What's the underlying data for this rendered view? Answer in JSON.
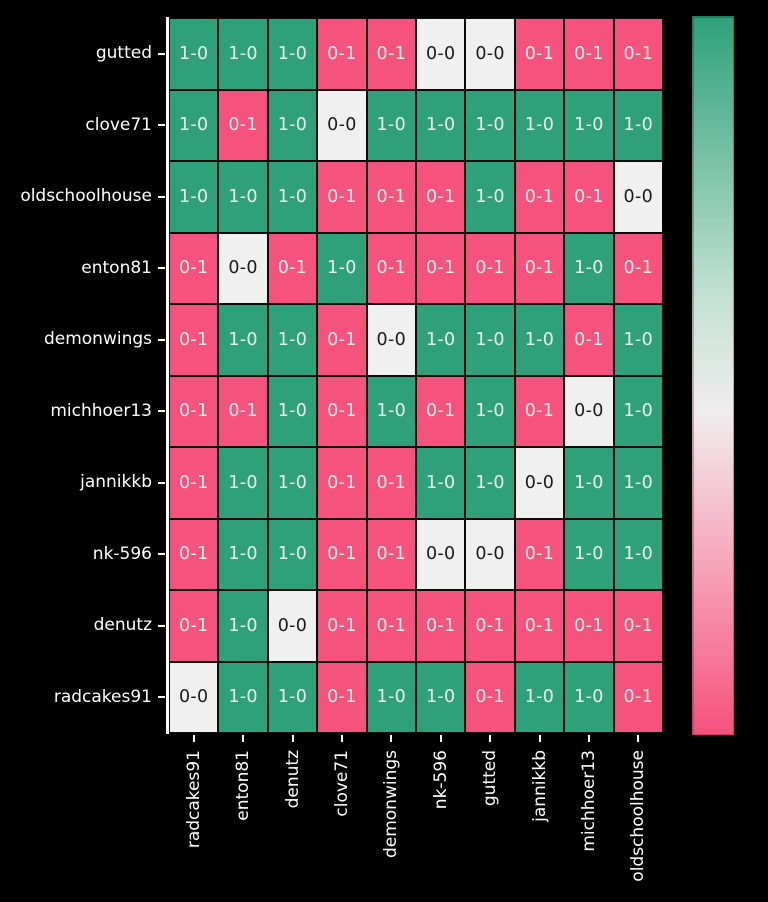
{
  "chart_data": {
    "type": "heatmap",
    "title": "",
    "description": "Head-to-head match results matrix (win 1-0 green, loss 0-1 pink, draw/self 0-0 white)",
    "row_labels": [
      "gutted",
      "clove71",
      "oldschoolhouse",
      "enton81",
      "demonwings",
      "michhoer13",
      "jannikkb",
      "nk-596",
      "denutz",
      "radcakes91"
    ],
    "col_labels": [
      "radcakes91",
      "enton81",
      "denutz",
      "clove71",
      "demonwings",
      "nk-596",
      "gutted",
      "jannikkb",
      "michhoer13",
      "oldschoolhouse"
    ],
    "values": [
      [
        "1-0",
        "1-0",
        "1-0",
        "0-1",
        "0-1",
        "0-0",
        "0-0",
        "0-1",
        "0-1",
        "0-1"
      ],
      [
        "1-0",
        "0-1",
        "1-0",
        "0-0",
        "1-0",
        "1-0",
        "1-0",
        "1-0",
        "1-0",
        "1-0"
      ],
      [
        "1-0",
        "1-0",
        "1-0",
        "0-1",
        "0-1",
        "0-1",
        "1-0",
        "0-1",
        "0-1",
        "0-0"
      ],
      [
        "0-1",
        "0-0",
        "0-1",
        "1-0",
        "0-1",
        "0-1",
        "0-1",
        "0-1",
        "1-0",
        "0-1"
      ],
      [
        "0-1",
        "1-0",
        "1-0",
        "0-1",
        "0-0",
        "1-0",
        "1-0",
        "1-0",
        "0-1",
        "1-0"
      ],
      [
        "0-1",
        "0-1",
        "1-0",
        "0-1",
        "1-0",
        "0-1",
        "1-0",
        "0-1",
        "0-0",
        "1-0"
      ],
      [
        "0-1",
        "1-0",
        "1-0",
        "0-1",
        "0-1",
        "1-0",
        "1-0",
        "0-0",
        "1-0",
        "1-0"
      ],
      [
        "0-1",
        "1-0",
        "1-0",
        "0-1",
        "0-1",
        "0-0",
        "0-0",
        "0-1",
        "1-0",
        "1-0"
      ],
      [
        "0-1",
        "1-0",
        "0-0",
        "0-1",
        "0-1",
        "0-1",
        "0-1",
        "0-1",
        "0-1",
        "0-1"
      ],
      [
        "0-0",
        "1-0",
        "1-0",
        "0-1",
        "1-0",
        "1-0",
        "0-1",
        "1-0",
        "1-0",
        "0-1"
      ]
    ],
    "value_color_map": {
      "1-0": "win",
      "0-1": "loss",
      "0-0": "draw"
    },
    "colors": {
      "win": "#2EA17B",
      "loss": "#F6527E",
      "draw": "#F0F0F0",
      "cell_text_light": "#EDEFEC",
      "cell_text_dark": "#1A1A1A",
      "background": "#000000",
      "axis": "#FFFFFF",
      "grid_line": "#0A0A0A"
    },
    "colorbar": {
      "orientation": "vertical",
      "position": "right",
      "stops": [
        [
          "0%",
          "#2EA17B"
        ],
        [
          "38%",
          "#BFE0D2"
        ],
        [
          "55%",
          "#F0EDEE"
        ],
        [
          "75%",
          "#F6A9BE"
        ],
        [
          "100%",
          "#F6527E"
        ]
      ],
      "border_stops": [
        [
          "0%",
          "#1C7E5D"
        ],
        [
          "50%",
          "#B9B0B2"
        ],
        [
          "100%",
          "#D63A68"
        ]
      ],
      "tick_labels": []
    },
    "axes": {
      "x_tick_rotation": 90,
      "y_tick_rotation": 0
    },
    "grid": true,
    "legend_position": "right"
  }
}
